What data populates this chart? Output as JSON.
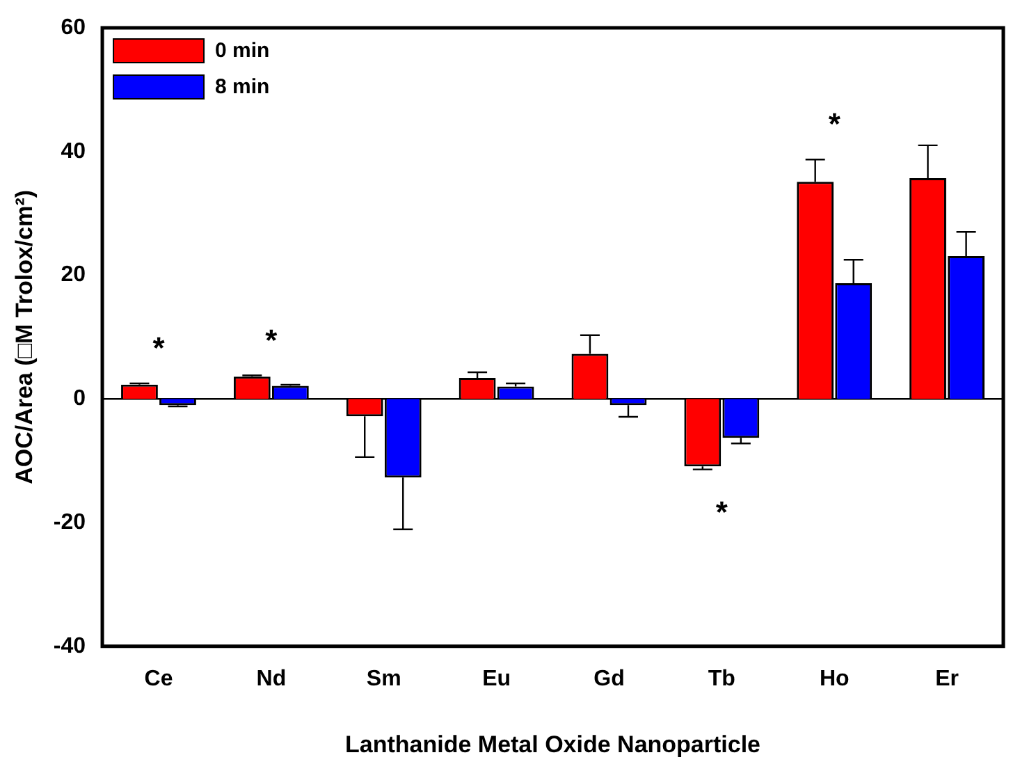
{
  "chart_data": {
    "type": "bar",
    "xlabel": "Lanthanide Metal Oxide Nanoparticle",
    "ylabel": "AOC/Area (□M Trolox/cm²)",
    "categories": [
      "Ce",
      "Nd",
      "Sm",
      "Eu",
      "Gd",
      "Tb",
      "Ho",
      "Er"
    ],
    "series": [
      {
        "name": "0 min",
        "color": "#ff0000",
        "values": [
          2.3,
          3.6,
          -2.8,
          3.4,
          7.3,
          -10.9,
          35.1,
          35.7
        ],
        "errors": [
          [
            2.3,
            2.5
          ],
          [
            3.6,
            3.8
          ],
          [
            -9.4,
            -2.8
          ],
          [
            3.4,
            4.3
          ],
          [
            7.3,
            10.3
          ],
          [
            -11.4,
            -10.9
          ],
          [
            35.1,
            38.7
          ],
          [
            35.7,
            41.0
          ]
        ]
      },
      {
        "name": "8 min",
        "color": "#0000ff",
        "values": [
          -1.0,
          2.1,
          -12.7,
          2.0,
          -1.0,
          -6.3,
          18.7,
          23.1
        ],
        "errors": [
          [
            -1.2,
            -1.0
          ],
          [
            2.1,
            2.3
          ],
          [
            -21.1,
            -12.7
          ],
          [
            2.0,
            2.5
          ],
          [
            -2.9,
            -1.0
          ],
          [
            -7.2,
            -6.3
          ],
          [
            18.7,
            22.5
          ],
          [
            23.1,
            27.0
          ]
        ]
      }
    ],
    "ylim": [
      -40,
      60
    ],
    "yticks": [
      -40,
      -20,
      0,
      20,
      40,
      60
    ],
    "ref_lines": [
      {
        "axis": "y",
        "value": 0
      }
    ],
    "annotations": [
      "*",
      "*",
      "*",
      "*"
    ],
    "legend": "top left",
    "grid": false
  }
}
